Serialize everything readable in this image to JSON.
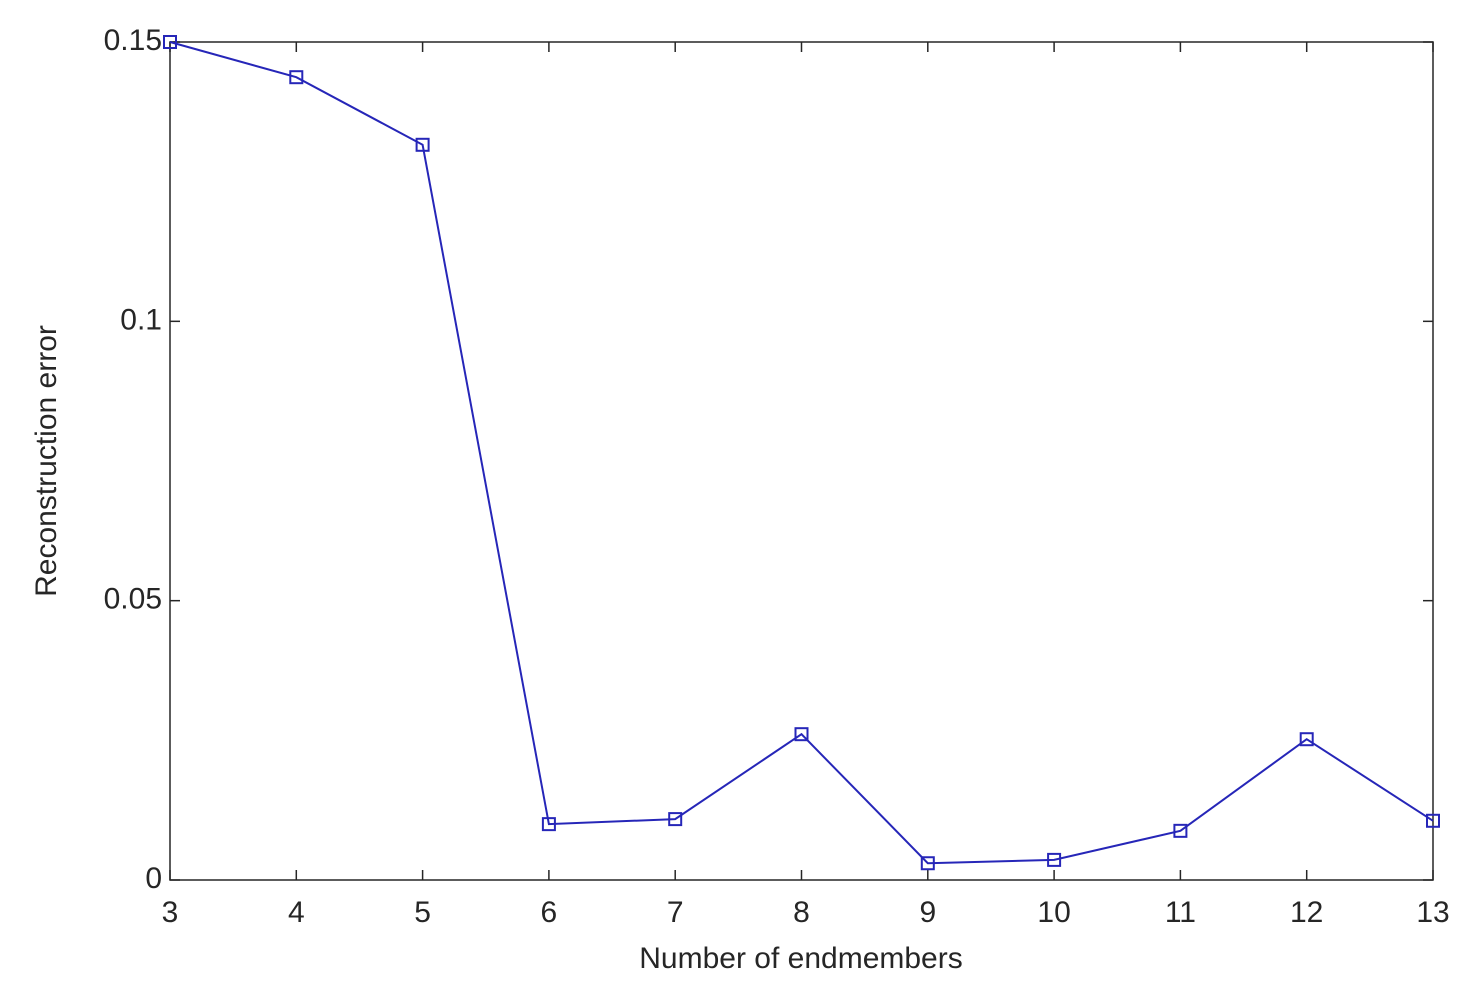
{
  "chart_data": {
    "type": "line",
    "x_label": "Number of endmembers",
    "y_label": "Reconstruction error",
    "x": [
      3,
      4,
      5,
      6,
      7,
      8,
      9,
      10,
      11,
      12,
      13
    ],
    "series": [
      {
        "color": "#2626b8",
        "values": [
          0.15,
          0.1437,
          0.1316,
          0.01,
          0.0109,
          0.0261,
          0.003,
          0.0036,
          0.0088,
          0.0252,
          0.0106
        ]
      }
    ],
    "xlim": [
      3,
      13
    ],
    "ylim": [
      0,
      0.15
    ],
    "xticks": [
      3,
      4,
      5,
      6,
      7,
      8,
      9,
      10,
      11,
      12,
      13
    ],
    "yticks": [
      0,
      0.05,
      0.1,
      0.15
    ],
    "marker": "square"
  }
}
